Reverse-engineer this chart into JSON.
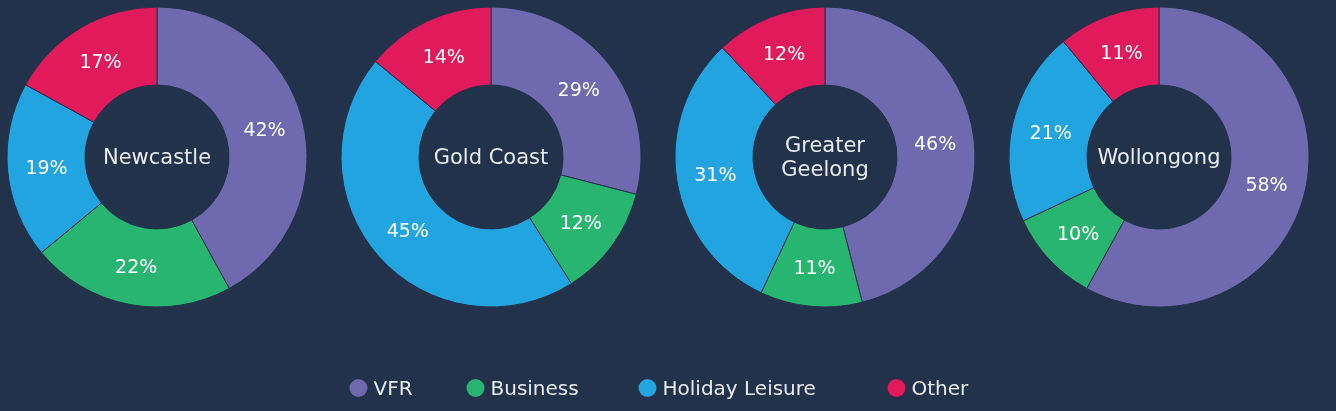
{
  "chart_data": [
    {
      "type": "donut",
      "title": "Newcastle",
      "categories": [
        "VFR",
        "Business",
        "Holiday Leisure",
        "Other"
      ],
      "values": [
        42,
        22,
        19,
        17
      ],
      "value_labels": [
        "42%",
        "22%",
        "19%",
        "17%"
      ],
      "colors": [
        "#6f69b0",
        "#27b56f",
        "#21a4df",
        "#e01a5b"
      ],
      "legend": "bottom"
    },
    {
      "type": "donut",
      "title": "Gold Coast",
      "categories": [
        null,
        null,
        null,
        null
      ],
      "values": [
        29,
        12,
        45,
        14
      ],
      "value_labels": [
        "29%",
        "12%",
        "45%",
        "14%"
      ],
      "colors": [
        "#6f69b0",
        "#27b56f",
        "#21a4df",
        "#e01a5b"
      ]
    },
    {
      "type": "donut",
      "title": "Greater Geelong",
      "categories": [
        null,
        null,
        null,
        null
      ],
      "values": [
        46,
        11,
        31,
        12
      ],
      "value_labels": [
        "46%",
        "11%",
        "31%",
        "12%"
      ],
      "colors": [
        "#6f69b0",
        "#27b56f",
        "#21a4df",
        "#e01a5b"
      ]
    },
    {
      "type": "donut",
      "title": "Wollongong",
      "categories": [
        null,
        null,
        null,
        null
      ],
      "values": [
        58,
        10,
        21,
        11
      ],
      "value_labels": [
        "58%",
        "10%",
        "21%",
        "11%"
      ],
      "colors": [
        "#6f69b0",
        "#27b56f",
        "#21a4df",
        "#e01a5b"
      ]
    }
  ]
}
